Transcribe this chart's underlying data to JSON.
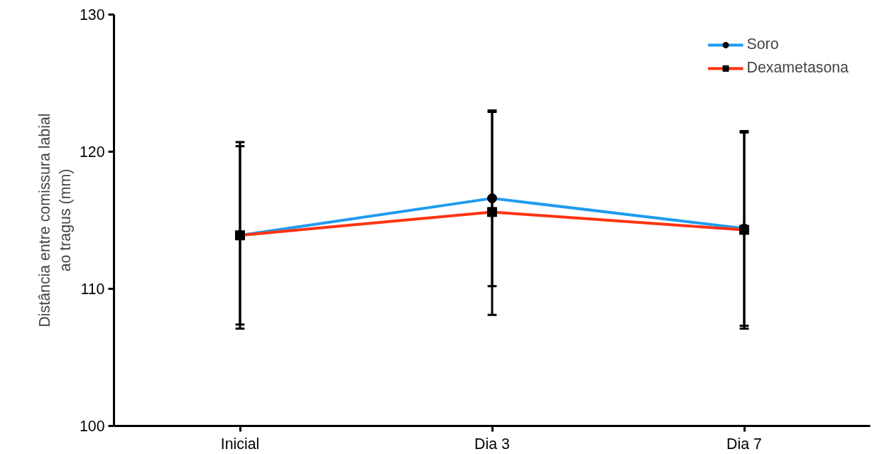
{
  "chart_data": {
    "type": "line",
    "ylabel": "Distância entre comissura labial\nao tragus (mm)",
    "categories": [
      "Inicial",
      "Dia 3",
      "Dia 7"
    ],
    "series": [
      {
        "name": "Soro",
        "color": "#1f9bf0",
        "marker": "circle",
        "values": [
          113.9,
          116.6,
          114.4
        ],
        "errors": [
          [
            107.4,
            120.4
          ],
          [
            110.2,
            123.0
          ],
          [
            107.3,
            121.5
          ]
        ]
      },
      {
        "name": "Dexametasona",
        "color": "#ff3311",
        "marker": "square",
        "values": [
          113.9,
          115.6,
          114.3
        ],
        "errors": [
          [
            107.1,
            120.7
          ],
          [
            108.1,
            122.9
          ],
          [
            107.1,
            121.4
          ]
        ]
      }
    ],
    "ylim": [
      100,
      130
    ],
    "yticks": [
      100,
      110,
      120,
      130
    ],
    "grid": false,
    "legend": "top right"
  }
}
